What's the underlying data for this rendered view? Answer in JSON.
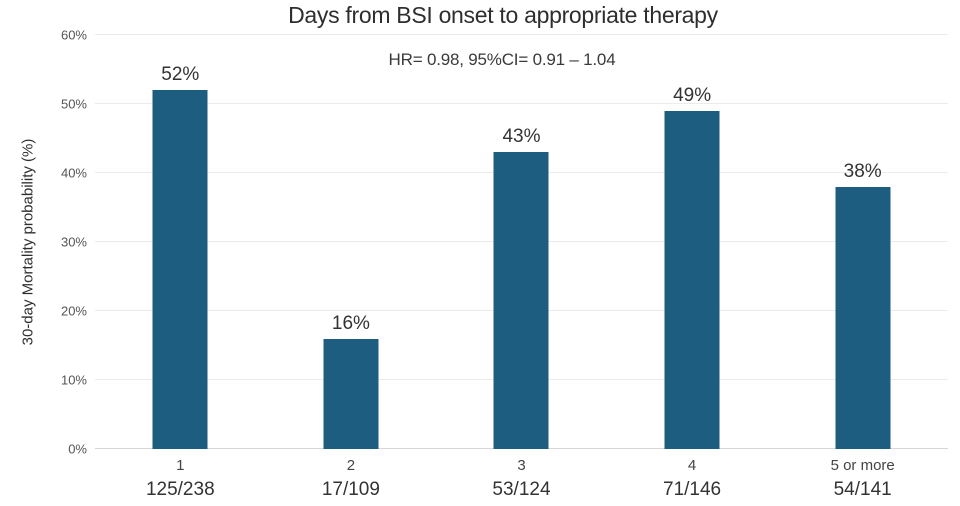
{
  "chart": {
    "title": "Days from BSI onset to appropriate therapy",
    "subtitle": "HR= 0.98, 95%CI= 0.91 – 1.04",
    "ylabel": "30-day Mortality probability (%)"
  },
  "chart_data": {
    "type": "bar",
    "title": "Days from BSI onset to appropriate therapy",
    "subtitle": "HR= 0.98, 95%CI= 0.91 – 1.04",
    "xlabel": "",
    "ylabel": "30-day Mortality probability (%)",
    "categories": [
      "1",
      "2",
      "3",
      "4",
      "5 or more"
    ],
    "values": [
      52,
      16,
      43,
      49,
      38
    ],
    "value_labels": [
      "52%",
      "16%",
      "43%",
      "49%",
      "38%"
    ],
    "count_labels": [
      "125/238",
      "17/109",
      "53/124",
      "71/146",
      "54/141"
    ],
    "ylim": [
      0,
      60
    ],
    "yticks": [
      {
        "label": "0%",
        "value": 0
      },
      {
        "label": "10%",
        "value": 10
      },
      {
        "label": "20%",
        "value": 20
      },
      {
        "label": "30%",
        "value": 30
      },
      {
        "label": "40%",
        "value": 40
      },
      {
        "label": "50%",
        "value": 50
      },
      {
        "label": "60%",
        "value": 60
      }
    ],
    "grid": true,
    "legend": "none",
    "bar_color": "#1d5e80",
    "gridline_color": "#ebebeb",
    "baseline_color": "#d7d7d7"
  }
}
